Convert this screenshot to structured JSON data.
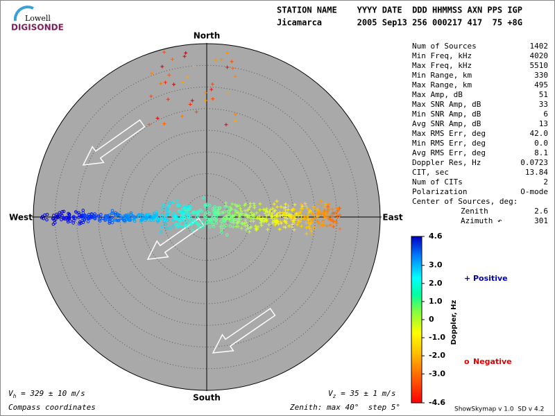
{
  "logo": {
    "top": "Lowell",
    "bottom": "DIGISONDE"
  },
  "header": {
    "line1": "STATION NAME    YYYY DATE  DDD HHMMSS AXN PPS IGP",
    "line2": "Jicamarca       2005 Sep13 256 000217 417  75 +8G"
  },
  "directions": {
    "north": "North",
    "south": "South",
    "west": "West",
    "east": "East"
  },
  "stats": [
    {
      "label": "Num of Sources",
      "value": "1402"
    },
    {
      "label": "Min Freq, kHz",
      "value": "4020"
    },
    {
      "label": "Max Freq, kHz",
      "value": "5510"
    },
    {
      "label": "Min Range, km",
      "value": "330"
    },
    {
      "label": "Max Range, km",
      "value": "495"
    },
    {
      "label": "Max Amp, dB",
      "value": "51"
    },
    {
      "label": "Max SNR Amp, dB",
      "value": "33"
    },
    {
      "label": "Min SNR Amp, dB",
      "value": "6"
    },
    {
      "label": "Avg SNR Amp, dB",
      "value": "13"
    },
    {
      "label": "Max RMS Err, deg",
      "value": "42.0"
    },
    {
      "label": "Min RMS Err, deg",
      "value": "0.0"
    },
    {
      "label": "Avg RMS Err, deg",
      "value": "8.1"
    },
    {
      "label": "Doppler Res, Hz",
      "value": "0.0723"
    },
    {
      "label": "CIT, sec",
      "value": "13.84"
    },
    {
      "label": "Num of CITs",
      "value": "2"
    },
    {
      "label": "Polarization",
      "value": "O-mode"
    },
    {
      "label": "Center of Sources, deg:"
    },
    {
      "label": "Zenith",
      "value": "2.6",
      "indent": true
    },
    {
      "label": "Azimuth ↶",
      "value": "301",
      "indent": true
    }
  ],
  "colorbar": {
    "label": "Doppler, Hz",
    "range": [
      -4.6,
      4.6
    ],
    "ticks": [
      4.6,
      {
        "value": 3,
        "label": "3.0"
      },
      {
        "value": 2,
        "label": "2.0"
      },
      {
        "value": 1,
        "label": "1.0"
      },
      0,
      {
        "value": -1,
        "label": "-1.0"
      },
      {
        "value": -2,
        "label": "-2.0"
      },
      {
        "value": -3,
        "label": "-3.0"
      },
      -4.6
    ]
  },
  "legend": {
    "positive": {
      "symbol": "+",
      "label": "Positive"
    },
    "negative": {
      "symbol": "o",
      "label": "Negative"
    }
  },
  "footer": {
    "vh": {
      "symbol": "V",
      "subscript": "h",
      "text": " = 329 ± 10 m/s"
    },
    "vz": {
      "symbol": "V",
      "subscript": "z",
      "text": " = 35 ± 1 m/s"
    },
    "coords": "Compass coordinates",
    "zenith": "Zenith: max 40°  step 5°",
    "version": "ShowSkymap v 1.0  SD v 4.2"
  }
}
